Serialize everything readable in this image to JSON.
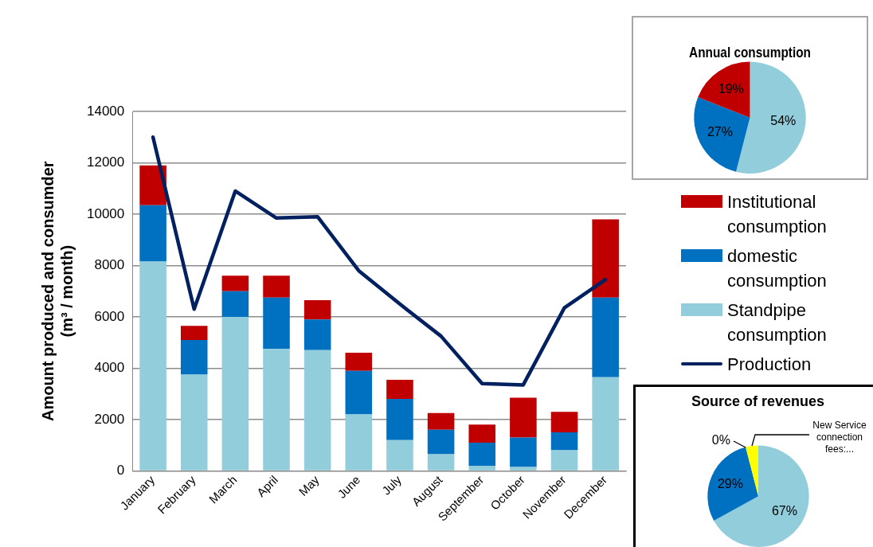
{
  "chart_data": [
    {
      "type": "bar",
      "stacked": true,
      "ylabel": "Amount produced and consumder (m³ / month)",
      "categories": [
        "January",
        "February",
        "March",
        "April",
        "May",
        "June",
        "July",
        "August",
        "September",
        "October",
        "November",
        "December"
      ],
      "series": [
        {
          "name": "Standpipe consumption",
          "color": "#92cddc",
          "values": [
            8150,
            3750,
            6000,
            4750,
            4700,
            2200,
            1200,
            650,
            200,
            150,
            800,
            3650
          ]
        },
        {
          "name": "domestic consumption",
          "color": "#0070c0",
          "values": [
            2200,
            1350,
            1000,
            2000,
            1200,
            1700,
            1600,
            950,
            900,
            1150,
            700,
            3100
          ]
        },
        {
          "name": "Institutional consumption",
          "color": "#c00000",
          "values": [
            1550,
            550,
            600,
            850,
            750,
            700,
            750,
            650,
            700,
            1550,
            800,
            3050
          ]
        },
        {
          "name": "Production",
          "type": "line",
          "color": "#002060",
          "values": [
            13000,
            6300,
            10900,
            9850,
            9900,
            7800,
            6500,
            5250,
            3400,
            3350,
            6350,
            7450
          ]
        }
      ],
      "ylim": [
        0,
        14000
      ],
      "yticks": [
        0,
        2000,
        4000,
        6000,
        8000,
        10000,
        12000,
        14000
      ],
      "grid": "y",
      "legend": "right"
    },
    {
      "type": "pie",
      "title": "Annual consumption",
      "categories": [
        null,
        null,
        null
      ],
      "values": [
        54,
        27,
        19
      ],
      "colors": [
        "#92cddc",
        "#0070c0",
        "#c00000"
      ],
      "value_labels": [
        "54%",
        "27%",
        "19%"
      ]
    },
    {
      "type": "pie",
      "title": "Source of revenues",
      "categories": [
        null,
        null,
        null,
        "New Service connection fees:..."
      ],
      "values": [
        67,
        29,
        0,
        4
      ],
      "colors": [
        "#92cddc",
        "#0070c0",
        "#7f7f7f",
        "#ffff00"
      ],
      "value_labels": [
        "67%",
        "29%",
        "0%",
        null
      ]
    }
  ]
}
